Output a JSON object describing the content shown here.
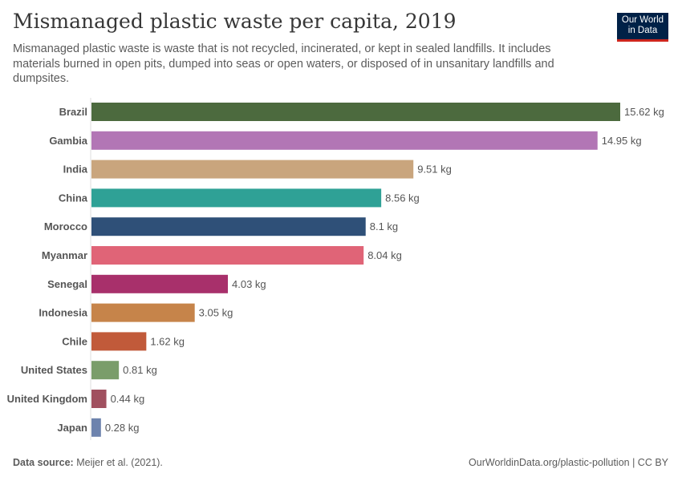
{
  "header": {
    "title": "Mismanaged plastic waste per capita, 2019",
    "subtitle": "Mismanaged plastic waste is waste that is not recycled, incinerated, or kept in sealed landfills. It includes materials burned in open pits, dumped into seas or open waters, or disposed of in unsanitary landfills and dumpsites."
  },
  "logo": {
    "line1": "Our World",
    "line2": "in Data"
  },
  "footer": {
    "source_label": "Data source:",
    "source_text": "Meijer et al. (2021).",
    "url": "OurWorldinData.org/plastic-pollution | CC BY"
  },
  "chart_data": {
    "type": "bar",
    "orientation": "horizontal",
    "unit": "kg",
    "title": "Mismanaged plastic waste per capita, 2019",
    "grid": false,
    "categories": [
      "Brazil",
      "Gambia",
      "India",
      "China",
      "Morocco",
      "Myanmar",
      "Senegal",
      "Indonesia",
      "Chile",
      "United States",
      "United Kingdom",
      "Japan"
    ],
    "values": [
      15.62,
      14.95,
      9.51,
      8.56,
      8.1,
      8.04,
      4.03,
      3.05,
      1.62,
      0.81,
      0.44,
      0.28
    ],
    "value_labels": [
      "15.62 kg",
      "14.95 kg",
      "9.51 kg",
      "8.56 kg",
      "8.1 kg",
      "8.04 kg",
      "4.03 kg",
      "3.05 kg",
      "1.62 kg",
      "0.81 kg",
      "0.44 kg",
      "0.28 kg"
    ],
    "colors": [
      "#4c6a3e",
      "#b276b5",
      "#c9a57d",
      "#2fa196",
      "#2f5078",
      "#e06477",
      "#a8306b",
      "#c6844a",
      "#c15a3a",
      "#7a9d6a",
      "#a0505f",
      "#6d83ad"
    ]
  }
}
